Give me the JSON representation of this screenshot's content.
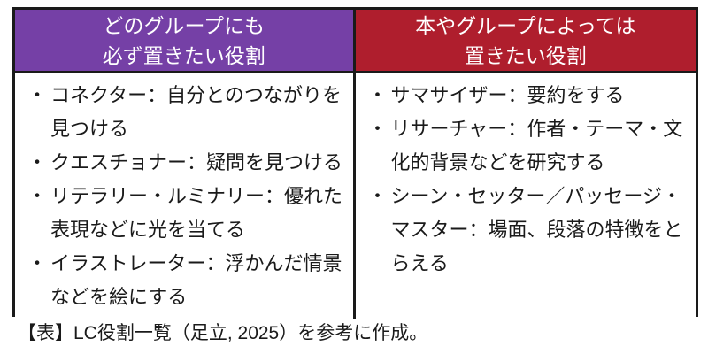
{
  "colors": {
    "left_header_bg": "#7540A6",
    "right_header_bg": "#AF1E2D",
    "header_text": "#FFFFFF",
    "border": "#1A1A1A",
    "body_text": "#1A1A1A"
  },
  "bullet": "・",
  "table": {
    "left_column": {
      "header_line1": "どのグループにも",
      "header_line2": "必ず置きたい役割",
      "items": [
        "コネクター：自分とのつながりを見つける",
        "クエスチョナー：疑問を見つける",
        "リテラリー・ルミナリー：優れた表現などに光を当てる",
        "イラストレーター：浮かんだ情景などを絵にする"
      ]
    },
    "right_column": {
      "header_line1": "本やグループによっては",
      "header_line2": "置きたい役割",
      "items": [
        "サマサイザー：要約をする",
        "リサーチャー：作者・テーマ・文化的背景などを研究する",
        "シーン・セッター／パッセージ・マスター：場面、段落の特徴をとらえる"
      ]
    }
  },
  "caption": "【表】LC役割一覧（足立, 2025）を参考に作成。"
}
